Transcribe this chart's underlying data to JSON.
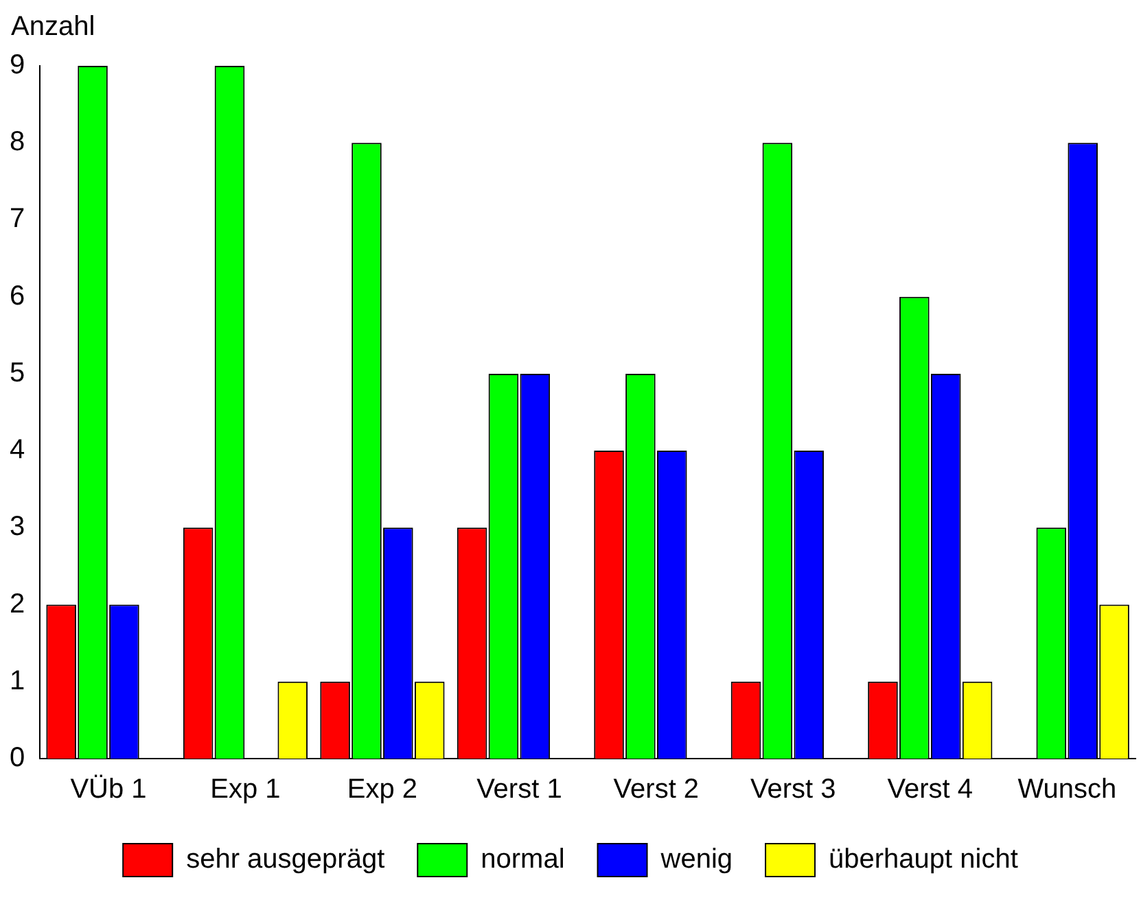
{
  "chart_data": {
    "type": "bar",
    "ylabel": "Anzahl",
    "categories": [
      "VÜb 1",
      "Exp 1",
      "Exp 2",
      "Verst 1",
      "Verst 2",
      "Verst 3",
      "Verst 4",
      "Wunsch"
    ],
    "series": [
      {
        "name": "sehr ausgeprägt",
        "color": "#ff0000",
        "values": [
          2,
          3,
          1,
          3,
          4,
          1,
          1,
          0
        ]
      },
      {
        "name": "normal",
        "color": "#00ff00",
        "values": [
          9,
          9,
          8,
          5,
          5,
          8,
          6,
          3
        ]
      },
      {
        "name": "wenig",
        "color": "#0000ff",
        "values": [
          2,
          0,
          3,
          5,
          4,
          4,
          5,
          8
        ]
      },
      {
        "name": "überhaupt nicht",
        "color": "#ffff00",
        "values": [
          0,
          1,
          1,
          0,
          0,
          0,
          1,
          2
        ]
      }
    ],
    "ylim": [
      0,
      9
    ],
    "yticks": [
      0,
      1,
      2,
      3,
      4,
      5,
      6,
      7,
      8,
      9
    ],
    "grid": false,
    "legend": "bottom"
  }
}
